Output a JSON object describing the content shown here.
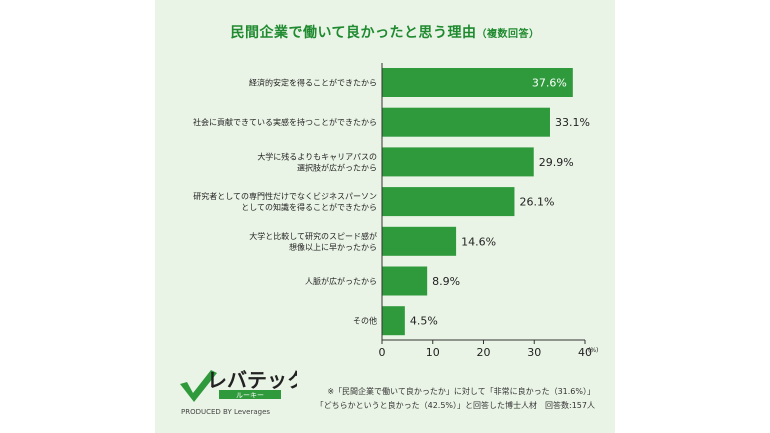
{
  "title": {
    "main": "民間企業で働いて良かったと思う理由",
    "sub": "（複数回答）"
  },
  "chart_data": {
    "type": "bar",
    "orientation": "horizontal",
    "categories": [
      [
        "経済的安定を得ることができたから"
      ],
      [
        "社会に貢献できている実感を持つことができたから"
      ],
      [
        "大学に残るよりもキャリアパスの",
        "選択肢が広がったから"
      ],
      [
        "研究者としての専門性だけでなくビジネスパーソン",
        "としての知識を得ることができたから"
      ],
      [
        "大学と比較して研究のスピード感が",
        "想像以上に早かったから"
      ],
      [
        "人脈が広がったから"
      ],
      [
        "その他"
      ]
    ],
    "values": [
      37.6,
      33.1,
      29.9,
      26.1,
      14.6,
      8.9,
      4.5
    ],
    "value_labels": [
      "37.6%",
      "33.1%",
      "29.9%",
      "26.1%",
      "14.6%",
      "8.9%",
      "4.5%"
    ],
    "xlim": [
      0,
      40
    ],
    "xticks": [
      "0",
      "10",
      "20",
      "30",
      "40"
    ],
    "unit_label": "(%)",
    "bar_color": "#2e9a3c",
    "grid": false
  },
  "footer": {
    "brand_main": "レバテック",
    "brand_sub": "ルーキー",
    "brand_credit": "PRODUCED BY Leverages",
    "note_line1": "※「民間企業で働いて良かったか」に対して「非常に良かった（31.6%）」",
    "note_line2": "「どちらかというと良かった（42.5%）」と回答した博士人材　回答数:157人"
  }
}
